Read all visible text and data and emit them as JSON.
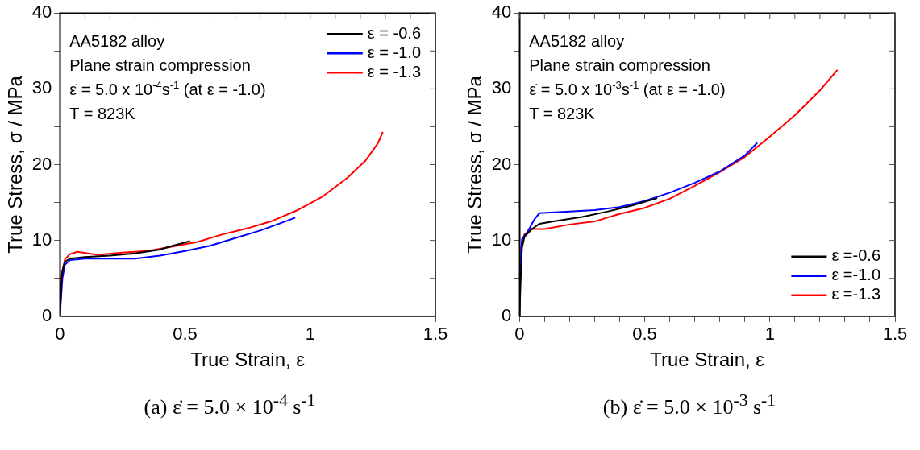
{
  "chart_data": [
    {
      "type": "line",
      "title": "(a) ε̇ = 5.0 × 10$^{-4}$ s$^{-1}$",
      "xlabel": "True Strain, ε",
      "ylabel": "True Stress, σ / MPa",
      "xlim": [
        0,
        1.5
      ],
      "ylim": [
        0,
        40
      ],
      "xticks": [
        0,
        {
          "value": 0.1,
          "label": null
        },
        {
          "value": 0.2,
          "label": null
        },
        {
          "value": 0.3,
          "label": null
        },
        {
          "value": 0.4,
          "label": null
        },
        0.5,
        {
          "value": 0.6,
          "label": null
        },
        {
          "value": 0.7,
          "label": null
        },
        {
          "value": 0.8,
          "label": null
        },
        {
          "value": 0.9,
          "label": null
        },
        1,
        {
          "value": 1.1,
          "label": null
        },
        {
          "value": 1.2,
          "label": null
        },
        {
          "value": 1.3,
          "label": null
        },
        {
          "value": 1.4,
          "label": null
        },
        1.5
      ],
      "yticks": [
        0,
        {
          "value": 5,
          "label": null
        },
        10,
        {
          "value": 15,
          "label": null
        },
        20,
        {
          "value": 25,
          "label": null
        },
        30,
        {
          "value": 35,
          "label": null
        },
        40
      ],
      "grid": false,
      "legend": "top right",
      "marker": "none",
      "line_style": "solid",
      "annotations": [
        "AA5182 alloy",
        "Plane strain compression",
        "ε̇ = 5.0 x 10$^{-4}$s$^{-1}$ (at ε = -1.0)",
        "T = 823K"
      ],
      "series": [
        {
          "name": "ε = -0.6",
          "color": "#000000",
          "x": [
            0,
            0.005,
            0.01,
            0.02,
            0.04,
            0.1,
            0.2,
            0.3,
            0.4,
            0.45,
            0.52
          ],
          "values": [
            0,
            4,
            6,
            7.2,
            7.6,
            7.8,
            8,
            8.3,
            8.8,
            9.3,
            9.9
          ]
        },
        {
          "name": "ε = -1.0",
          "color": "#0000ff",
          "x": [
            0,
            0.01,
            0.02,
            0.04,
            0.1,
            0.2,
            0.3,
            0.4,
            0.5,
            0.6,
            0.7,
            0.8,
            0.9,
            0.94
          ],
          "values": [
            0,
            5,
            6.8,
            7.4,
            7.6,
            7.6,
            7.6,
            8,
            8.6,
            9.3,
            10.3,
            11.3,
            12.5,
            13
          ]
        },
        {
          "name": "ε = -1.3",
          "color": "#ff0000",
          "x": [
            0,
            0.005,
            0.02,
            0.04,
            0.07,
            0.15,
            0.25,
            0.35,
            0.45,
            0.55,
            0.65,
            0.75,
            0.85,
            0.95,
            1.05,
            1.15,
            1.22,
            1.27,
            1.29
          ],
          "values": [
            0,
            5,
            7.5,
            8.2,
            8.5,
            8.1,
            8.4,
            8.6,
            9.2,
            9.8,
            10.8,
            11.6,
            12.6,
            14,
            15.8,
            18.3,
            20.5,
            22.8,
            24.3
          ]
        }
      ]
    },
    {
      "type": "line",
      "title": "(b) ε̇ = 5.0 × 10$^{-3}$ s$^{-1}$",
      "xlabel": "True Strain, ε",
      "ylabel": "True Stress, σ / MPa",
      "xlim": [
        0,
        1.5
      ],
      "ylim": [
        0,
        40
      ],
      "xticks": [
        0,
        {
          "value": 0.1,
          "label": null
        },
        {
          "value": 0.2,
          "label": null
        },
        {
          "value": 0.3,
          "label": null
        },
        {
          "value": 0.4,
          "label": null
        },
        0.5,
        {
          "value": 0.6,
          "label": null
        },
        {
          "value": 0.7,
          "label": null
        },
        {
          "value": 0.8,
          "label": null
        },
        {
          "value": 0.9,
          "label": null
        },
        1,
        {
          "value": 1.1,
          "label": null
        },
        {
          "value": 1.2,
          "label": null
        },
        {
          "value": 1.3,
          "label": null
        },
        {
          "value": 1.4,
          "label": null
        },
        1.5
      ],
      "yticks": [
        0,
        {
          "value": 5,
          "label": null
        },
        10,
        {
          "value": 15,
          "label": null
        },
        20,
        {
          "value": 25,
          "label": null
        },
        30,
        {
          "value": 35,
          "label": null
        },
        40
      ],
      "grid": false,
      "legend": "bottom right",
      "marker": "none",
      "line_style": "solid",
      "annotations": [
        "AA5182 alloy",
        "Plane strain compression",
        "ε̇ = 5.0 x 10$^{-3}$s$^{-1}$ (at ε = -1.0)",
        "T = 823K"
      ],
      "series": [
        {
          "name": "ε =-0.6",
          "color": "#000000",
          "x": [
            0,
            0.005,
            0.01,
            0.02,
            0.05,
            0.08,
            0.15,
            0.25,
            0.35,
            0.45,
            0.55
          ],
          "values": [
            0,
            5,
            9,
            10.5,
            11.5,
            12.2,
            12.6,
            13.1,
            13.8,
            14.6,
            15.6
          ]
        },
        {
          "name": "ε =-1.0",
          "color": "#0000ff",
          "x": [
            0,
            0.003,
            0.01,
            0.03,
            0.06,
            0.08,
            0.2,
            0.3,
            0.4,
            0.5,
            0.6,
            0.7,
            0.8,
            0.9,
            0.95
          ],
          "values": [
            0,
            7,
            10.2,
            11,
            12.8,
            13.6,
            13.8,
            14,
            14.4,
            15.2,
            16.3,
            17.6,
            19.1,
            21.2,
            22.9
          ]
        },
        {
          "name": "ε =-1.3",
          "color": "#ff0000",
          "x": [
            0,
            0.005,
            0.02,
            0.05,
            0.1,
            0.2,
            0.3,
            0.4,
            0.5,
            0.6,
            0.7,
            0.8,
            0.9,
            1,
            1.1,
            1.2,
            1.27
          ],
          "values": [
            0,
            9,
            10.8,
            11.5,
            11.5,
            12.1,
            12.5,
            13.5,
            14.3,
            15.5,
            17.2,
            19,
            21,
            23.7,
            26.5,
            29.8,
            32.5
          ]
        }
      ]
    }
  ]
}
